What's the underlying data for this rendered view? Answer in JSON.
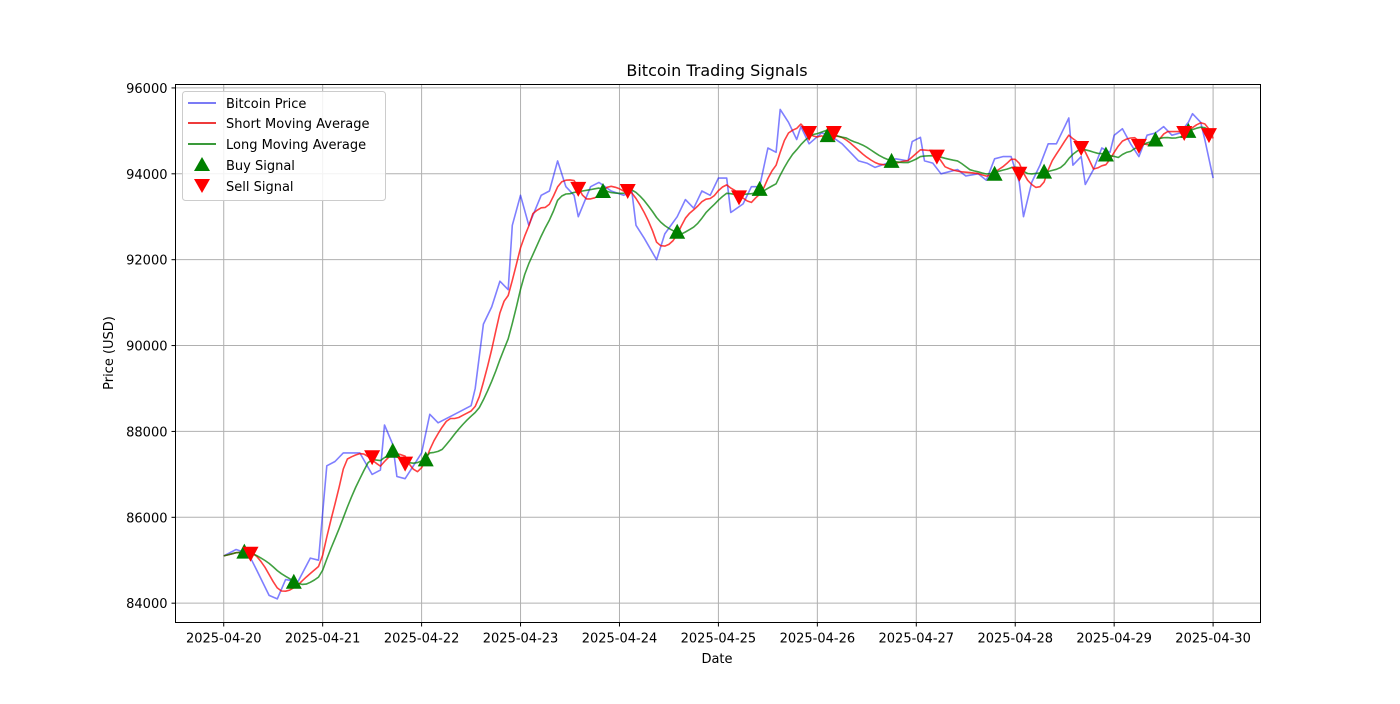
{
  "chart_data": {
    "type": "line",
    "title": "Bitcoin Trading Signals",
    "xlabel": "Date",
    "ylabel": "Price (USD)",
    "x_unit": "hours since 2025-04-20 00:00",
    "xlim_hours": [
      -11.7,
      251.5
    ],
    "ylim": [
      83550,
      96080
    ],
    "grid": true,
    "legend_placement": "top-left",
    "x_ticks": [
      {
        "hours": 0,
        "label": "2025-04-20"
      },
      {
        "hours": 24,
        "label": "2025-04-21"
      },
      {
        "hours": 48,
        "label": "2025-04-22"
      },
      {
        "hours": 72,
        "label": "2025-04-23"
      },
      {
        "hours": 96,
        "label": "2025-04-24"
      },
      {
        "hours": 120,
        "label": "2025-04-25"
      },
      {
        "hours": 144,
        "label": "2025-04-26"
      },
      {
        "hours": 168,
        "label": "2025-04-27"
      },
      {
        "hours": 192,
        "label": "2025-04-28"
      },
      {
        "hours": 216,
        "label": "2025-04-29"
      },
      {
        "hours": 240,
        "label": "2025-04-30"
      }
    ],
    "y_ticks": [
      {
        "value": 84000,
        "label": "84000"
      },
      {
        "value": 86000,
        "label": "86000"
      },
      {
        "value": 88000,
        "label": "88000"
      },
      {
        "value": 90000,
        "label": "90000"
      },
      {
        "value": 92000,
        "label": "92000"
      },
      {
        "value": 94000,
        "label": "94000"
      },
      {
        "value": 96000,
        "label": "96000"
      }
    ],
    "legend": [
      "Bitcoin Price",
      "Short Moving Average",
      "Long Moving Average",
      "Buy Signal",
      "Sell Signal"
    ],
    "colors": {
      "price": "#7b7bf5",
      "short": "#ee3b3b",
      "long": "#2e8b2e",
      "buy": "#008000",
      "sell": "#ff0000"
    },
    "short_window_hours": 6,
    "long_window_hours": 12,
    "price": {
      "hours": [
        0,
        3,
        6,
        8,
        11,
        13,
        15,
        18,
        21,
        23,
        25,
        27,
        29,
        33,
        36,
        38,
        39,
        41,
        42,
        44,
        46,
        48,
        50,
        52,
        56,
        60,
        61,
        63,
        65,
        67,
        69,
        70,
        72,
        74,
        77,
        79,
        81,
        83,
        85,
        86,
        89,
        91,
        94,
        97,
        99,
        100,
        102,
        105,
        107,
        110,
        112,
        114,
        116,
        118,
        120,
        122,
        123,
        126,
        128,
        130,
        132,
        134,
        135,
        137,
        139,
        140,
        142,
        145,
        147,
        150,
        152,
        154,
        156,
        158,
        161,
        163,
        166,
        167,
        169,
        170,
        172,
        174,
        176,
        178,
        180,
        183,
        185,
        187,
        189,
        191,
        193,
        194,
        196,
        198,
        200,
        202,
        204,
        205,
        206,
        208,
        209,
        211,
        213,
        215,
        216,
        218,
        220,
        222,
        224,
        226,
        228,
        230,
        232,
        234,
        235,
        237,
        238,
        240
      ],
      "values": [
        85100,
        85250,
        85150,
        84770,
        84180,
        84100,
        84550,
        84500,
        85050,
        85000,
        87200,
        87300,
        87500,
        87500,
        87000,
        87100,
        88150,
        87700,
        86950,
        86900,
        87200,
        87500,
        88400,
        88200,
        88400,
        88600,
        89000,
        90500,
        90900,
        91500,
        91300,
        92800,
        93500,
        92800,
        93500,
        93600,
        94300,
        93700,
        93500,
        93000,
        93700,
        93800,
        93600,
        93500,
        93600,
        92800,
        92500,
        92000,
        92600,
        93000,
        93400,
        93200,
        93600,
        93500,
        93900,
        93900,
        93100,
        93300,
        93700,
        93700,
        94600,
        94500,
        95500,
        95200,
        94800,
        95100,
        94700,
        94950,
        94900,
        94700,
        94500,
        94300,
        94250,
        94150,
        94250,
        94350,
        94300,
        94750,
        94850,
        94300,
        94250,
        94000,
        94050,
        94100,
        93950,
        94000,
        93850,
        94350,
        94400,
        94400,
        93800,
        93000,
        93800,
        94200,
        94700,
        94700,
        95100,
        95300,
        94200,
        94400,
        93750,
        94100,
        94600,
        94500,
        94900,
        95050,
        94700,
        94400,
        94900,
        94950,
        95100,
        94900,
        94950,
        95200,
        95400,
        95200,
        94800,
        93900
      ]
    },
    "buy_signals": [
      {
        "hours": 5,
        "price": 85200
      },
      {
        "hours": 17,
        "price": 84500
      },
      {
        "hours": 41,
        "price": 87550
      },
      {
        "hours": 49,
        "price": 87350
      },
      {
        "hours": 92,
        "price": 93600
      },
      {
        "hours": 110,
        "price": 92650
      },
      {
        "hours": 130,
        "price": 93650
      },
      {
        "hours": 146.5,
        "price": 94900
      },
      {
        "hours": 162,
        "price": 94300
      },
      {
        "hours": 187,
        "price": 94000
      },
      {
        "hours": 199,
        "price": 94050
      },
      {
        "hours": 214,
        "price": 94450
      },
      {
        "hours": 226,
        "price": 94800
      },
      {
        "hours": 234,
        "price": 95000
      }
    ],
    "sell_signals": [
      {
        "hours": 6.5,
        "price": 85150
      },
      {
        "hours": 36,
        "price": 87400
      },
      {
        "hours": 44,
        "price": 87250
      },
      {
        "hours": 86,
        "price": 93650
      },
      {
        "hours": 98,
        "price": 93600
      },
      {
        "hours": 125,
        "price": 93450
      },
      {
        "hours": 142,
        "price": 94950
      },
      {
        "hours": 148,
        "price": 94950
      },
      {
        "hours": 173,
        "price": 94400
      },
      {
        "hours": 193,
        "price": 94000
      },
      {
        "hours": 208,
        "price": 94600
      },
      {
        "hours": 222,
        "price": 94650
      },
      {
        "hours": 233,
        "price": 94950
      },
      {
        "hours": 239,
        "price": 94900
      }
    ]
  }
}
